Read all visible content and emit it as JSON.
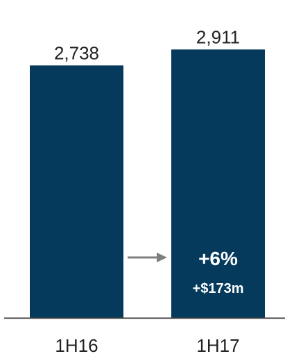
{
  "chart_data": {
    "type": "bar",
    "categories": [
      "1H16",
      "1H17"
    ],
    "values": [
      2738,
      2911
    ],
    "data_labels": [
      "2,738",
      "2,911"
    ],
    "title": "",
    "xlabel": "",
    "ylabel": "",
    "ylim": [
      0,
      3000
    ],
    "grid": false,
    "legend": "none",
    "annotations": {
      "percent_change": "+6%",
      "absolute_change": "+$173m",
      "arrow_direction": "right"
    }
  },
  "colors": {
    "bar": "#053A5C",
    "axis": "#444444",
    "arrow": "#7F7F7F",
    "label_text": "#222222",
    "annotation_text": "#FFFFFF"
  }
}
